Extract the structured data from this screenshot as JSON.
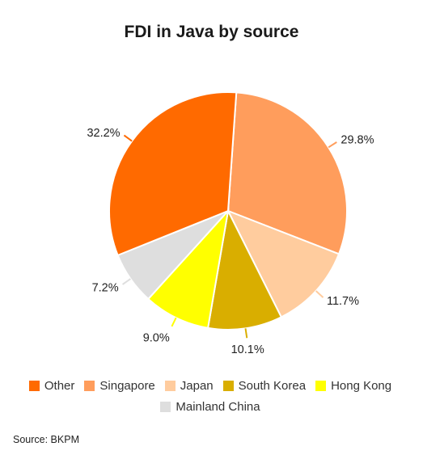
{
  "chart_data": {
    "type": "pie",
    "title": "FDI in Java by source",
    "slices": [
      {
        "name": "Singapore",
        "value": 29.8,
        "label": "29.8%",
        "color": "#FF9D5C"
      },
      {
        "name": "Japan",
        "value": 11.7,
        "label": "11.7%",
        "color": "#FFCC9E"
      },
      {
        "name": "South Korea",
        "value": 10.1,
        "label": "10.1%",
        "color": "#D9AE00"
      },
      {
        "name": "Hong Kong",
        "value": 9.0,
        "label": "9.0%",
        "color": "#FFFF00"
      },
      {
        "name": "Mainland China",
        "value": 7.2,
        "label": "7.2%",
        "color": "#DEDEDE"
      },
      {
        "name": "Other",
        "value": 32.2,
        "label": "32.2%",
        "color": "#FF6A00"
      }
    ],
    "legend": [
      {
        "name": "Other",
        "color": "#FF6A00"
      },
      {
        "name": "Singapore",
        "color": "#FF9D5C"
      },
      {
        "name": "Japan",
        "color": "#FFCC9E"
      },
      {
        "name": "South Korea",
        "color": "#D9AE00"
      },
      {
        "name": "Hong Kong",
        "color": "#FFFF00"
      },
      {
        "name": "Mainland China",
        "color": "#DEDEDE"
      }
    ],
    "legend_position": "bottom",
    "source": "Source: BKPM"
  }
}
